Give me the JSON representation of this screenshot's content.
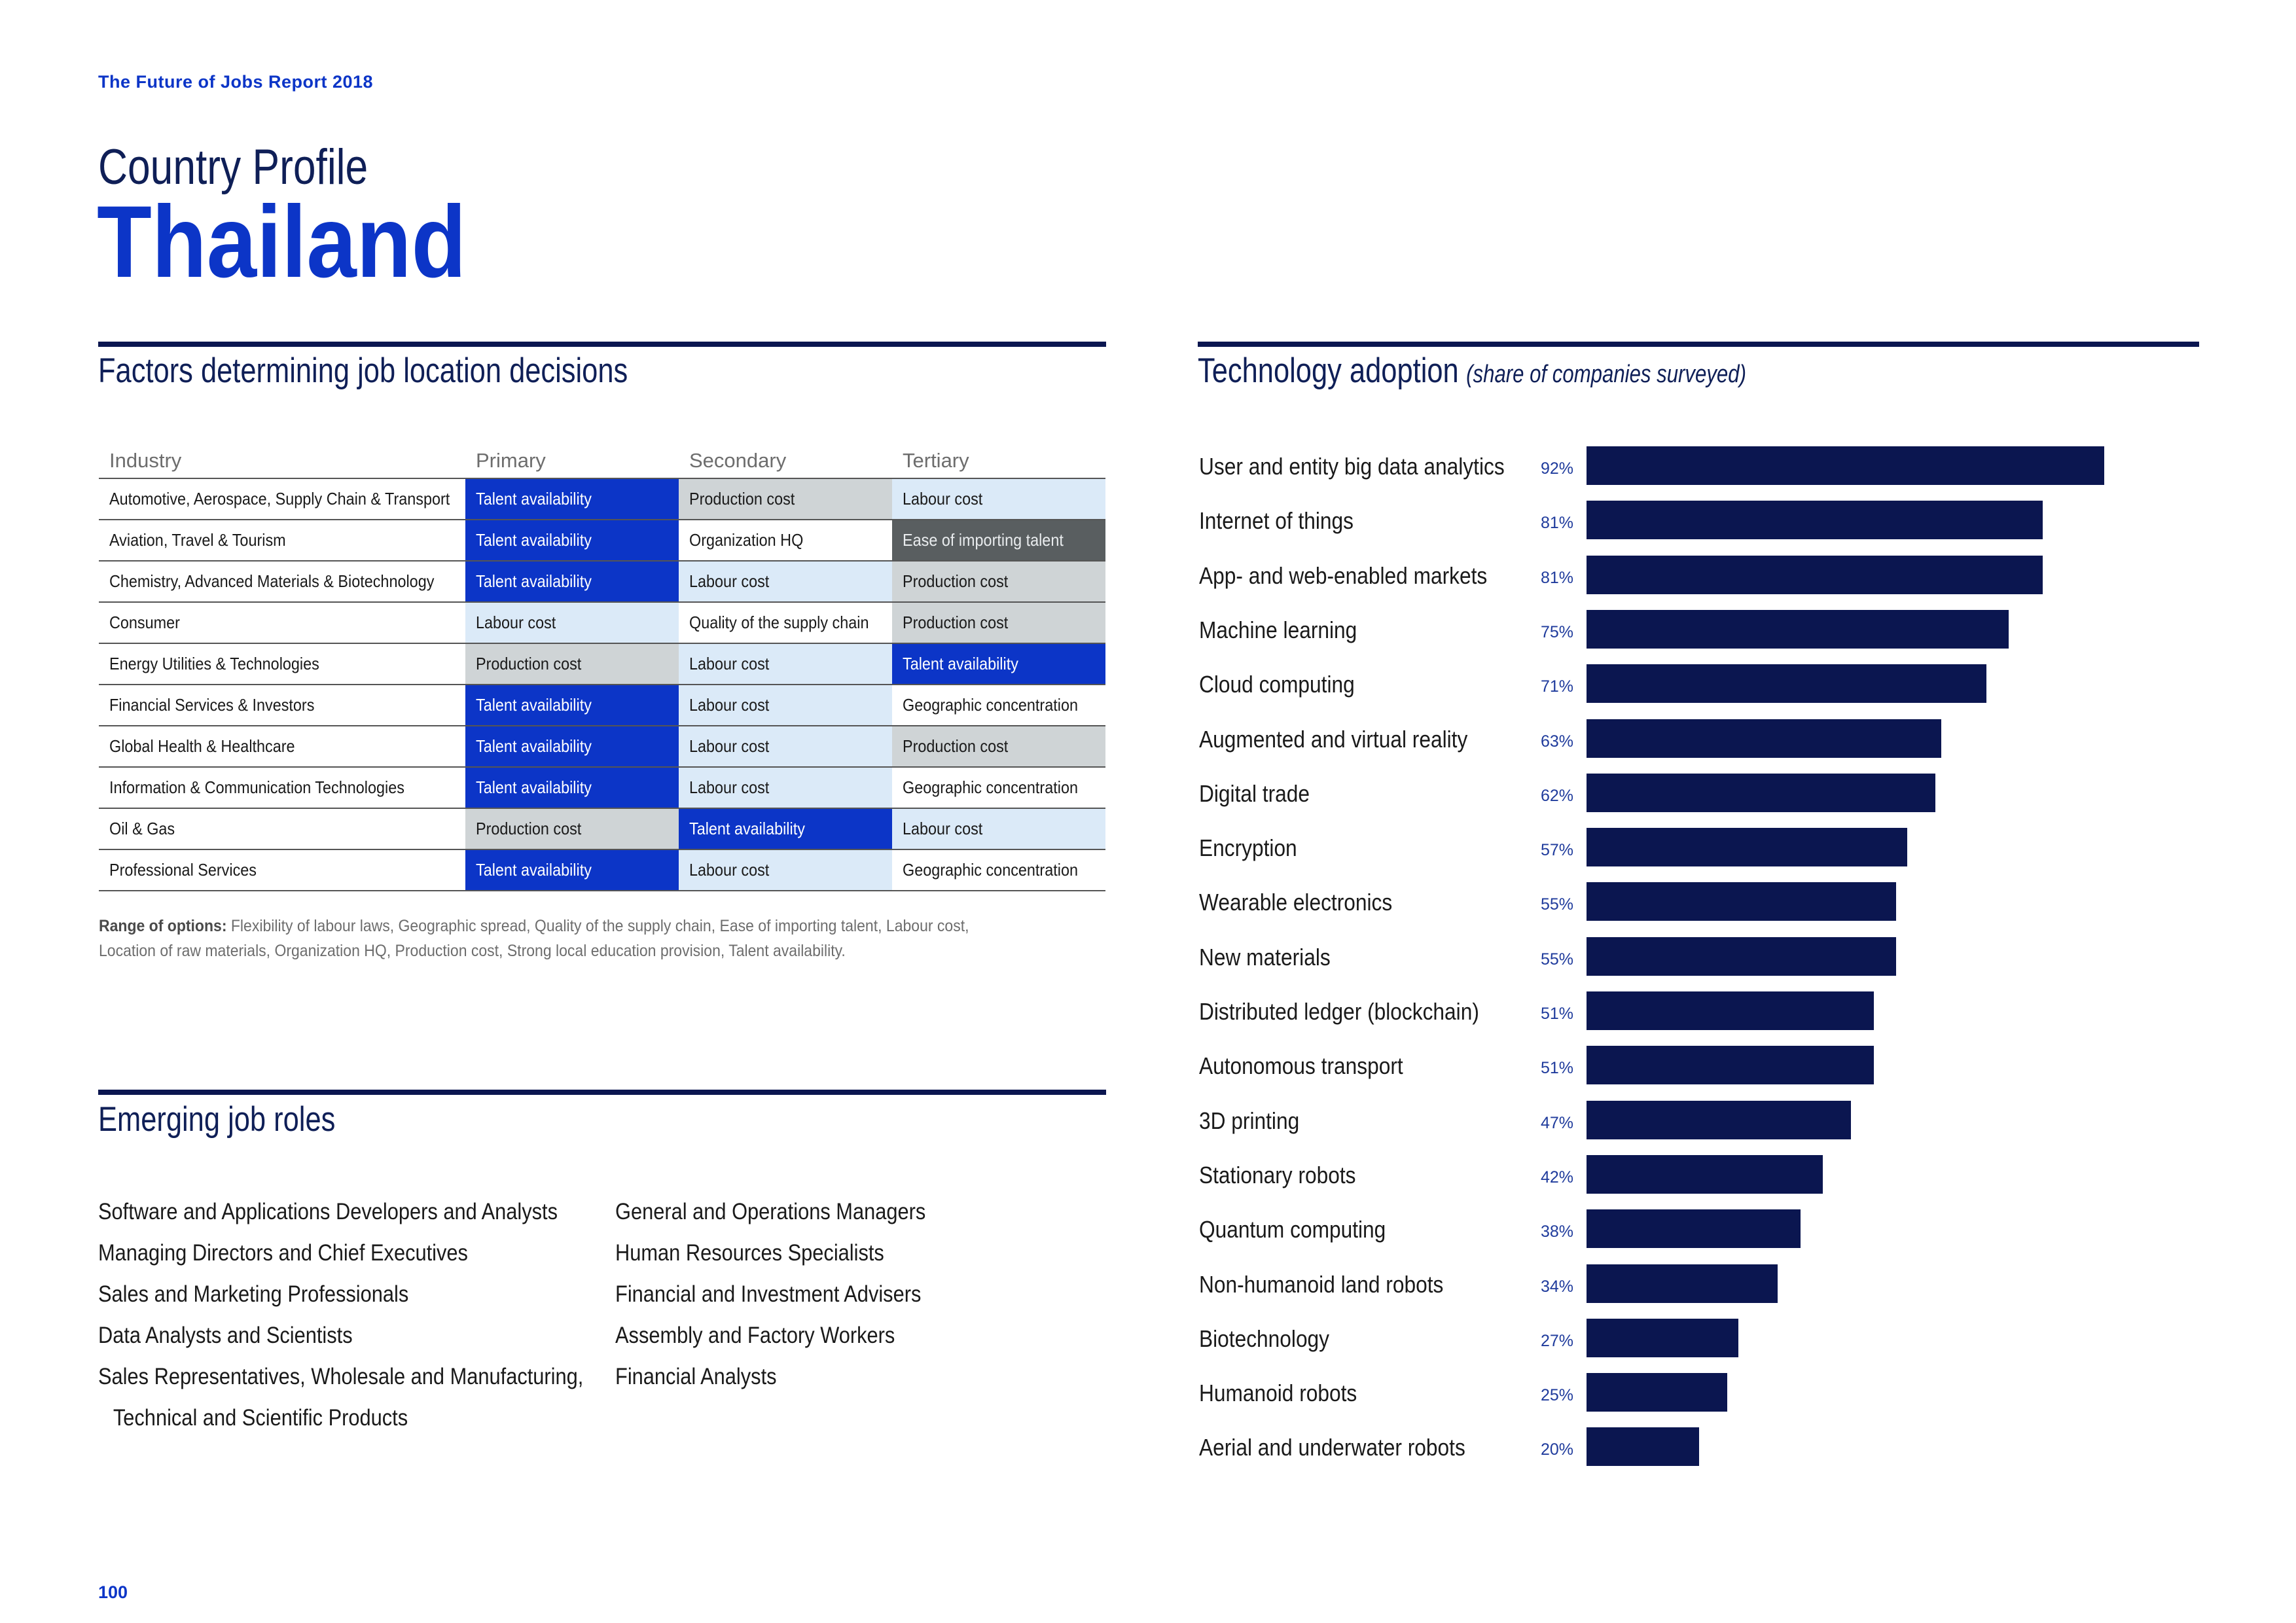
{
  "header": {
    "report_title": "The Future of Jobs Report 2018",
    "profile_label": "Country Profile",
    "country": "Thailand"
  },
  "factors": {
    "title": "Factors determining job location decisions",
    "columns": [
      "Industry",
      "Primary",
      "Secondary",
      "Tertiary"
    ],
    "rows": [
      {
        "industry": "Automotive, Aerospace, Supply Chain & Transport",
        "primary": "Talent availability",
        "primary_level": "high",
        "secondary": "Production cost",
        "secondary_level": "mid",
        "tertiary": "Labour cost",
        "tertiary_level": "low"
      },
      {
        "industry": "Aviation, Travel & Tourism",
        "primary": "Talent availability",
        "primary_level": "high",
        "secondary": "Organization HQ",
        "secondary_level": "none",
        "tertiary": "Ease of importing talent",
        "tertiary_level": "dark"
      },
      {
        "industry": "Chemistry, Advanced Materials & Biotechnology",
        "primary": "Talent availability",
        "primary_level": "high",
        "secondary": "Labour cost",
        "secondary_level": "low",
        "tertiary": "Production cost",
        "tertiary_level": "mid"
      },
      {
        "industry": "Consumer",
        "primary": "Labour cost",
        "primary_level": "low",
        "secondary": "Quality of the supply chain",
        "secondary_level": "none",
        "tertiary": "Production cost",
        "tertiary_level": "mid"
      },
      {
        "industry": "Energy Utilities & Technologies",
        "primary": "Production cost",
        "primary_level": "mid",
        "secondary": "Labour cost",
        "secondary_level": "low",
        "tertiary": "Talent availability",
        "tertiary_level": "high"
      },
      {
        "industry": "Financial Services & Investors",
        "primary": "Talent availability",
        "primary_level": "high",
        "secondary": "Labour cost",
        "secondary_level": "low",
        "tertiary": "Geographic concentration",
        "tertiary_level": "none"
      },
      {
        "industry": "Global Health & Healthcare",
        "primary": "Talent availability",
        "primary_level": "high",
        "secondary": "Labour cost",
        "secondary_level": "low",
        "tertiary": "Production cost",
        "tertiary_level": "mid"
      },
      {
        "industry": "Information & Communication Technologies",
        "primary": "Talent availability",
        "primary_level": "high",
        "secondary": "Labour cost",
        "secondary_level": "low",
        "tertiary": "Geographic concentration",
        "tertiary_level": "none"
      },
      {
        "industry": "Oil & Gas",
        "primary": "Production cost",
        "primary_level": "mid",
        "secondary": "Talent availability",
        "secondary_level": "high",
        "tertiary": "Labour cost",
        "tertiary_level": "low"
      },
      {
        "industry": "Professional Services",
        "primary": "Talent availability",
        "primary_level": "high",
        "secondary": "Labour cost",
        "secondary_level": "low",
        "tertiary": "Geographic concentration",
        "tertiary_level": "none"
      }
    ],
    "options_label": "Range of options:",
    "options_text": "Flexibility of labour laws, Geographic spread, Quality of the supply chain, Ease of importing talent, Labour cost, Location of raw materials, Organization HQ, Production cost, Strong local education provision, Talent availability."
  },
  "roles": {
    "title": "Emerging job roles",
    "col1": [
      "Software and Applications Developers and Analysts",
      "Managing Directors and Chief Executives",
      "Sales and Marketing Professionals",
      "Data Analysts and Scientists",
      "Sales Representatives, Wholesale and Manufacturing,",
      "Technical and Scientific Products"
    ],
    "col2": [
      "General and Operations Managers",
      "Human Resources Specialists",
      "Financial and Investment Advisers",
      "Assembly and Factory Workers",
      "Financial Analysts"
    ]
  },
  "tech": {
    "title": "Technology adoption",
    "subtitle": "(share of companies surveyed)"
  },
  "chart_data": {
    "type": "bar",
    "orientation": "horizontal",
    "title": "Technology adoption (share of companies surveyed)",
    "xlim": [
      0,
      100
    ],
    "unit": "%",
    "categories": [
      "User and entity big data analytics",
      "Internet of things",
      "App- and web-enabled markets",
      "Machine learning",
      "Cloud computing",
      "Augmented and virtual reality",
      "Digital trade",
      "Encryption",
      "Wearable electronics",
      "New materials",
      "Distributed ledger (blockchain)",
      "Autonomous transport",
      "3D printing",
      "Stationary robots",
      "Quantum computing",
      "Non-humanoid land robots",
      "Biotechnology",
      "Humanoid robots",
      "Aerial and underwater robots"
    ],
    "values": [
      92,
      81,
      81,
      75,
      71,
      63,
      62,
      57,
      55,
      55,
      51,
      51,
      47,
      42,
      38,
      34,
      27,
      25,
      20
    ],
    "labels": [
      "92%",
      "81%",
      "81%",
      "75%",
      "71%",
      "63%",
      "62%",
      "57%",
      "55%",
      "55%",
      "51%",
      "51%",
      "47%",
      "42%",
      "38%",
      "34%",
      "27%",
      "25%",
      "20%"
    ],
    "bar_color": "#0b1650"
  },
  "footer": {
    "page_number": "100"
  }
}
